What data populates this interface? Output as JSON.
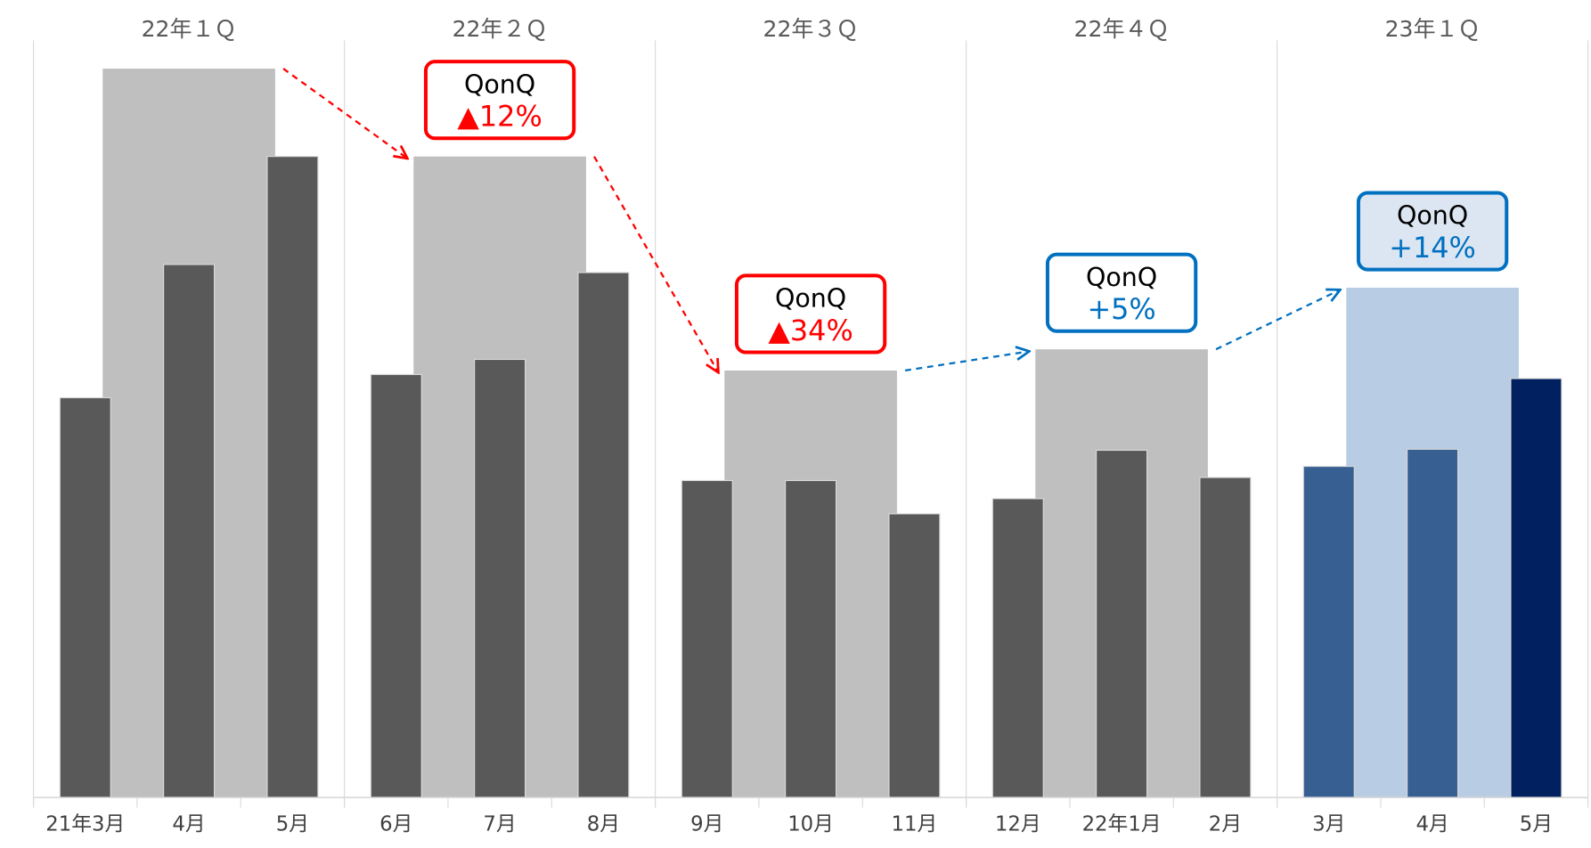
{
  "chart_data": {
    "type": "bar",
    "ylim": [
      0,
      750
    ],
    "categories": [
      "21年3月",
      "4月",
      "5月",
      "6月",
      "7月",
      "8月",
      "9月",
      "10月",
      "11月",
      "12月",
      "22年1月",
      "2月",
      "3月",
      "4月",
      "5月"
    ],
    "values": [
      396,
      528,
      635,
      419,
      434,
      520,
      314,
      314,
      281,
      296,
      344,
      317,
      328,
      345,
      415
    ],
    "colors": [
      "#595959",
      "#595959",
      "#595959",
      "#595959",
      "#595959",
      "#595959",
      "#595959",
      "#595959",
      "#595959",
      "#595959",
      "#595959",
      "#595959",
      "#375f92",
      "#375f92",
      "#002060"
    ],
    "groups": [
      {
        "name": "22年１Ｑ",
        "value": 722,
        "color": "#bfbfbf"
      },
      {
        "name": "22年２Ｑ",
        "value": 635,
        "color": "#bfbfbf"
      },
      {
        "name": "22年３Ｑ",
        "value": 423,
        "color": "#bfbfbf"
      },
      {
        "name": "22年４Ｑ",
        "value": 444,
        "color": "#bfbfbf"
      },
      {
        "name": "23年１Ｑ",
        "value": 505,
        "color": "#b8cce4"
      }
    ],
    "annotations": [
      {
        "title": "QonQ",
        "text": "▲12%",
        "color": "#ff0000",
        "fill": "#ffffff"
      },
      {
        "title": "QonQ",
        "text": "▲34%",
        "color": "#ff0000",
        "fill": "#ffffff"
      },
      {
        "title": "QonQ",
        "text": "+5%",
        "color": "#0070c0",
        "fill": "#ffffff"
      },
      {
        "title": "QonQ",
        "text": "+14%",
        "color": "#0070c0",
        "fill": "#dce6f2"
      }
    ]
  }
}
